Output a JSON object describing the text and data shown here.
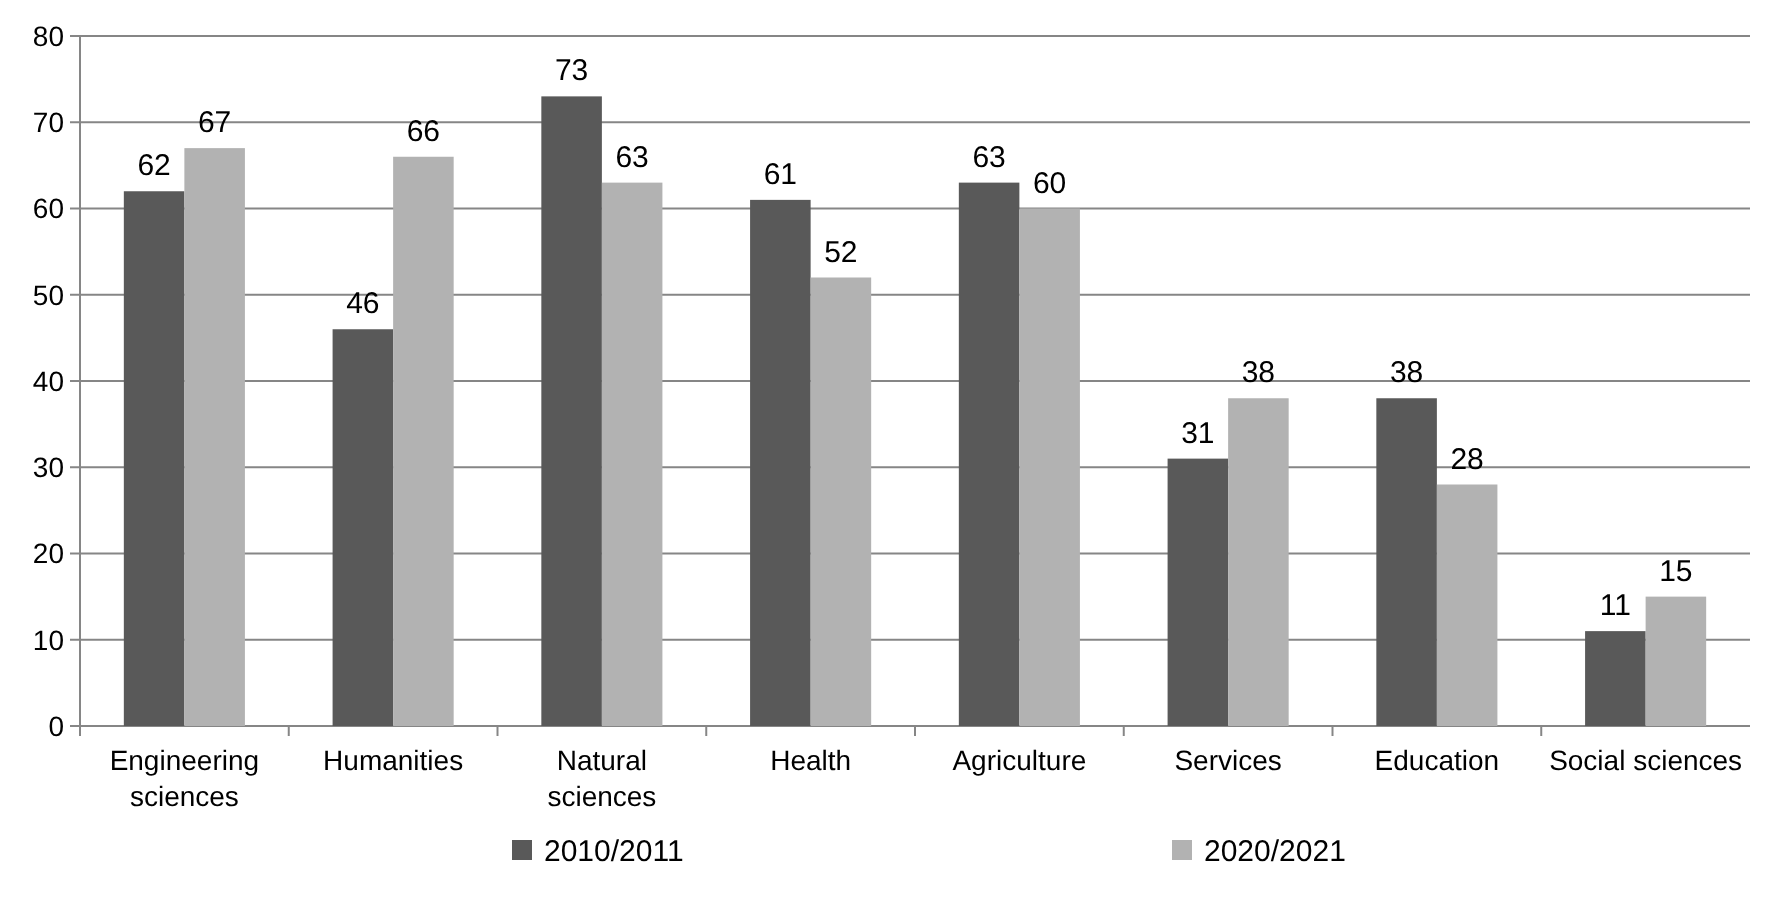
{
  "chart_data": {
    "type": "bar",
    "categories": [
      "Engineering sciences",
      "Humanities",
      "Natural sciences",
      "Health",
      "Agriculture",
      "Services",
      "Education",
      "Social sciences"
    ],
    "series": [
      {
        "name": "2010/2011",
        "color": "#595959",
        "values": [
          62,
          46,
          73,
          61,
          63,
          31,
          38,
          11
        ]
      },
      {
        "name": "2020/2021",
        "color": "#b2b2b2",
        "values": [
          67,
          66,
          63,
          52,
          60,
          38,
          28,
          15
        ]
      }
    ],
    "ylim": [
      0,
      80
    ],
    "yticks": [
      0,
      10,
      20,
      30,
      40,
      50,
      60,
      70,
      80
    ],
    "grid": "y",
    "legend": "bottom",
    "data_labels": true
  }
}
